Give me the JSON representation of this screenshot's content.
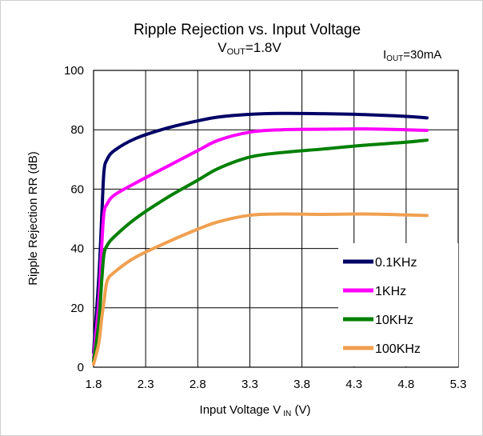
{
  "chart_data": {
    "type": "line",
    "title": "Ripple Rejection vs. Input Voltage",
    "subtitle": {
      "main": "V",
      "sub": "OUT",
      "rest": "=1.8V"
    },
    "condition": {
      "main": "I",
      "sub": "OUT",
      "rest": "=30mA"
    },
    "xlabel": {
      "main": "Input Voltage V",
      "sub": "IN",
      "rest": " (V)"
    },
    "ylabel": "Ripple Rejection RR (dB)",
    "xlim": [
      1.8,
      5.3
    ],
    "ylim": [
      0,
      100
    ],
    "xticks": [
      1.8,
      2.3,
      2.8,
      3.3,
      3.8,
      4.3,
      4.8,
      5.3
    ],
    "xtick_labels": [
      "1.8",
      "2.3",
      "2.8",
      "3.3",
      "3.8",
      "4.3",
      "4.8",
      "5.3"
    ],
    "yticks": [
      0,
      20,
      40,
      60,
      80,
      100
    ],
    "ytick_labels": [
      "0",
      "20",
      "40",
      "60",
      "80",
      "100"
    ],
    "grid": true,
    "legend_position": "bottom-right",
    "series": [
      {
        "name": "0.1KHz",
        "color": "#000066",
        "points": [
          [
            1.8,
            5
          ],
          [
            1.85,
            30
          ],
          [
            1.88,
            52
          ],
          [
            1.9,
            66
          ],
          [
            1.93,
            70
          ],
          [
            2.0,
            73
          ],
          [
            2.2,
            77
          ],
          [
            2.5,
            80.5
          ],
          [
            2.8,
            83
          ],
          [
            3.0,
            84.3
          ],
          [
            3.3,
            85.2
          ],
          [
            3.6,
            85.5
          ],
          [
            4.0,
            85.4
          ],
          [
            4.4,
            85.1
          ],
          [
            4.8,
            84.5
          ],
          [
            5.0,
            84
          ]
        ]
      },
      {
        "name": "1KHz",
        "color": "#ff00ff",
        "points": [
          [
            1.8,
            3
          ],
          [
            1.85,
            22
          ],
          [
            1.88,
            42
          ],
          [
            1.9,
            52
          ],
          [
            1.93,
            55
          ],
          [
            2.0,
            58
          ],
          [
            2.2,
            62
          ],
          [
            2.5,
            67.5
          ],
          [
            2.8,
            73
          ],
          [
            3.0,
            76.5
          ],
          [
            3.3,
            79.2
          ],
          [
            3.6,
            80
          ],
          [
            4.0,
            80.2
          ],
          [
            4.4,
            80.3
          ],
          [
            4.8,
            80
          ],
          [
            5.0,
            79.8
          ]
        ]
      },
      {
        "name": "10KHz",
        "color": "#008000",
        "points": [
          [
            1.8,
            2
          ],
          [
            1.85,
            15
          ],
          [
            1.88,
            30
          ],
          [
            1.9,
            38
          ],
          [
            1.93,
            41
          ],
          [
            2.0,
            44
          ],
          [
            2.2,
            50
          ],
          [
            2.5,
            57
          ],
          [
            2.8,
            63
          ],
          [
            3.0,
            67
          ],
          [
            3.3,
            70.8
          ],
          [
            3.6,
            72.3
          ],
          [
            4.0,
            73.5
          ],
          [
            4.4,
            74.8
          ],
          [
            4.8,
            75.8
          ],
          [
            5.0,
            76.5
          ]
        ]
      },
      {
        "name": "100KHz",
        "color": "#f0a050",
        "points": [
          [
            1.8,
            1
          ],
          [
            1.85,
            8
          ],
          [
            1.88,
            17
          ],
          [
            1.9,
            22
          ],
          [
            1.93,
            29
          ],
          [
            2.0,
            32
          ],
          [
            2.2,
            37
          ],
          [
            2.5,
            42
          ],
          [
            2.8,
            46.5
          ],
          [
            3.0,
            49
          ],
          [
            3.3,
            51.2
          ],
          [
            3.6,
            51.6
          ],
          [
            4.0,
            51.5
          ],
          [
            4.4,
            51.6
          ],
          [
            4.8,
            51.3
          ],
          [
            5.0,
            51.1
          ]
        ]
      }
    ]
  }
}
